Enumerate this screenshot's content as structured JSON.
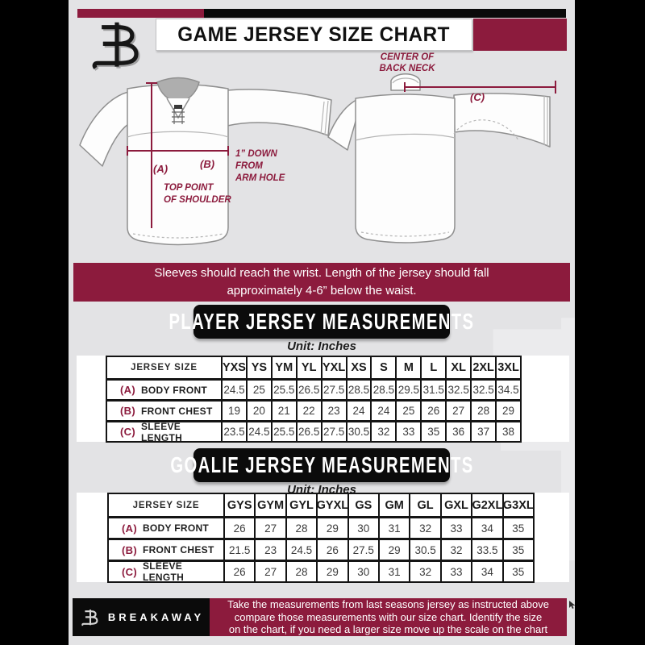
{
  "colors": {
    "maroon": "#8c1b3d",
    "background": "#e3e3e5",
    "frame": "#000000"
  },
  "header": {
    "title": "GAME JERSEY SIZE CHART"
  },
  "diagram": {
    "a_key": "(A)",
    "a_note": [
      "TOP POINT",
      "OF SHOULDER"
    ],
    "b_key": "(B)",
    "b_note": [
      "1” DOWN",
      "FROM",
      "ARM HOLE"
    ],
    "c_key": "(C)",
    "c_note": [
      "CENTER OF",
      "BACK NECK"
    ]
  },
  "banner": {
    "line1": "Sleeves should reach the wrist. Length of the jersey should fall",
    "line2": "approximately 4-6” below the waist."
  },
  "player": {
    "title": "PLAYER JERSEY MEASUREMENTS",
    "unit": "Unit: Inches",
    "table": {
      "header": [
        "JERSEY SIZE",
        "YXS",
        "YS",
        "YM",
        "YL",
        "YXL",
        "XS",
        "S",
        "M",
        "L",
        "XL",
        "2XL",
        "3XL"
      ],
      "rows": [
        {
          "key": "(A)",
          "label": "BODY FRONT",
          "values": [
            "24.5",
            "25",
            "25.5",
            "26.5",
            "27.5",
            "28.5",
            "28.5",
            "29.5",
            "31.5",
            "32.5",
            "32.5",
            "34.5"
          ]
        },
        {
          "key": "(B)",
          "label": "FRONT CHEST",
          "values": [
            "19",
            "20",
            "21",
            "22",
            "23",
            "24",
            "24",
            "25",
            "26",
            "27",
            "28",
            "29"
          ]
        },
        {
          "key": "(C)",
          "label": "SLEEVE LENGTH",
          "values": [
            "23.5",
            "24.5",
            "25.5",
            "26.5",
            "27.5",
            "30.5",
            "32",
            "33",
            "35",
            "36",
            "37",
            "38"
          ]
        }
      ]
    }
  },
  "goalie": {
    "title": "GOALIE JERSEY MEASUREMENTS",
    "unit": "Unit: Inches",
    "table": {
      "header": [
        "JERSEY SIZE",
        "GYS",
        "GYM",
        "GYL",
        "GYXL",
        "GS",
        "GM",
        "GL",
        "GXL",
        "G2XL",
        "G3XL"
      ],
      "rows": [
        {
          "key": "(A)",
          "label": "BODY FRONT",
          "values": [
            "26",
            "27",
            "28",
            "29",
            "30",
            "31",
            "32",
            "33",
            "34",
            "35"
          ]
        },
        {
          "key": "(B)",
          "label": "FRONT CHEST",
          "values": [
            "21.5",
            "23",
            "24.5",
            "26",
            "27.5",
            "29",
            "30.5",
            "32",
            "33.5",
            "35"
          ]
        },
        {
          "key": "(C)",
          "label": "SLEEVE LENGTH",
          "values": [
            "26",
            "27",
            "28",
            "29",
            "30",
            "31",
            "32",
            "33",
            "34",
            "35"
          ]
        }
      ]
    }
  },
  "footer": {
    "brand": "BREAKAWAY",
    "lines": [
      "Take the measurements from last seasons jersey as instructed above",
      "compare those measurements  with our size chart. Identify the size",
      "on the chart, if you need a larger size move up the scale on the chart"
    ]
  }
}
